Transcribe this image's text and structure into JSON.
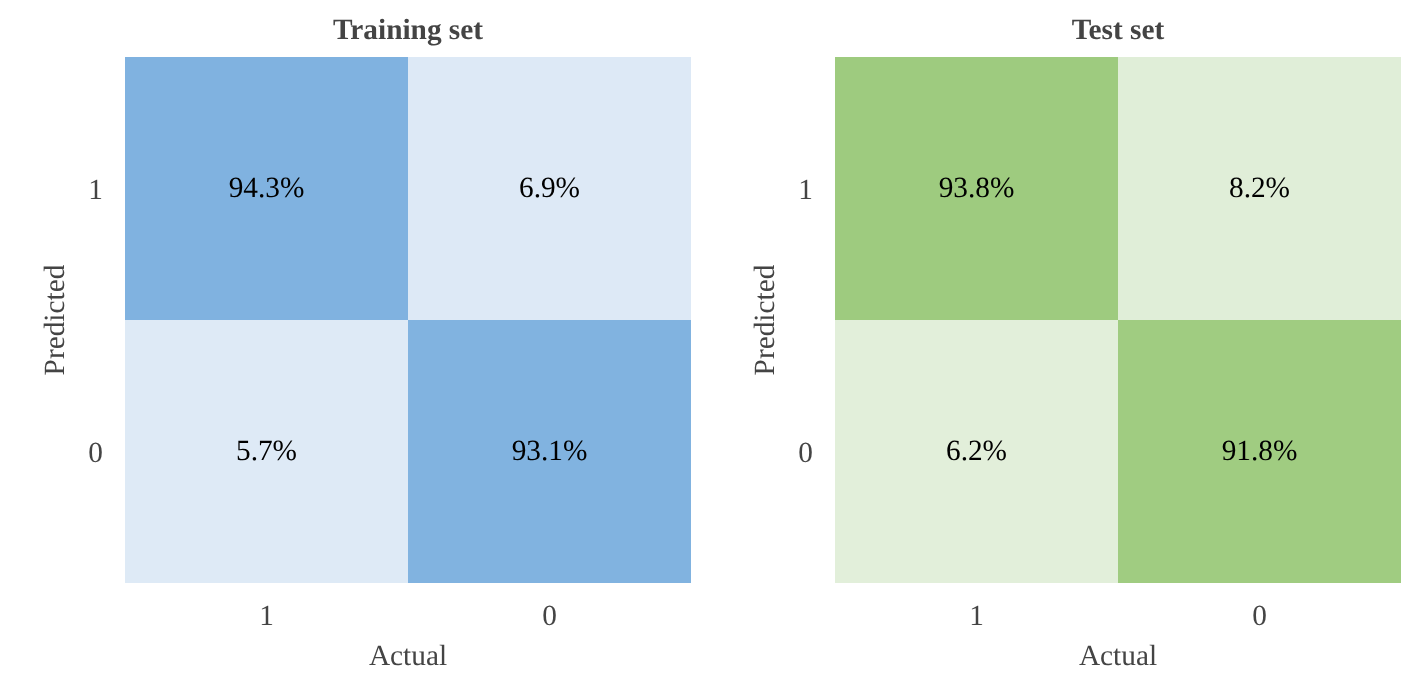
{
  "chart_data": [
    {
      "type": "heatmap",
      "title": "Training set",
      "xlabel": "Actual",
      "ylabel": "Predicted",
      "categories": [
        "1",
        "0"
      ],
      "y_categories": [
        "1",
        "0"
      ],
      "cells": [
        [
          94.3,
          6.9
        ],
        [
          5.7,
          93.1
        ]
      ],
      "cell_labels": [
        [
          "94.3%",
          "6.9%"
        ],
        [
          "5.7%",
          "93.1%"
        ]
      ],
      "colors": [
        "#deeaf6",
        "#80b2e0"
      ]
    },
    {
      "type": "heatmap",
      "title": "Test set",
      "xlabel": "Actual",
      "ylabel": "Predicted",
      "categories": [
        "1",
        "0"
      ],
      "y_categories": [
        "1",
        "0"
      ],
      "cells": [
        [
          93.8,
          8.2
        ],
        [
          6.2,
          91.8
        ]
      ],
      "cell_labels": [
        [
          "93.8%",
          "8.2%"
        ],
        [
          "6.2%",
          "91.8%"
        ]
      ],
      "colors": [
        "#e2efda",
        "#9ecb7f"
      ]
    }
  ]
}
